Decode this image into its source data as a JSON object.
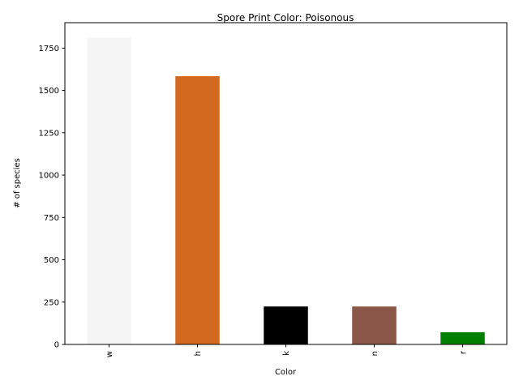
{
  "chart_data": {
    "type": "bar",
    "title": "Spore Print Color: Poisonous",
    "xlabel": "Color",
    "ylabel": "# of species",
    "categories": [
      "w",
      "h",
      "k",
      "n",
      "r"
    ],
    "values": [
      1812,
      1584,
      224,
      224,
      72
    ],
    "colors": [
      "#f5f5f5",
      "#d2691e",
      "#000000",
      "#8b5748",
      "#008000"
    ],
    "ylim": [
      0,
      1900
    ],
    "yticks": [
      0,
      250,
      500,
      750,
      1000,
      1250,
      1500,
      1750
    ],
    "grid": false,
    "legend": false,
    "x_tick_rotation": "vertical"
  }
}
